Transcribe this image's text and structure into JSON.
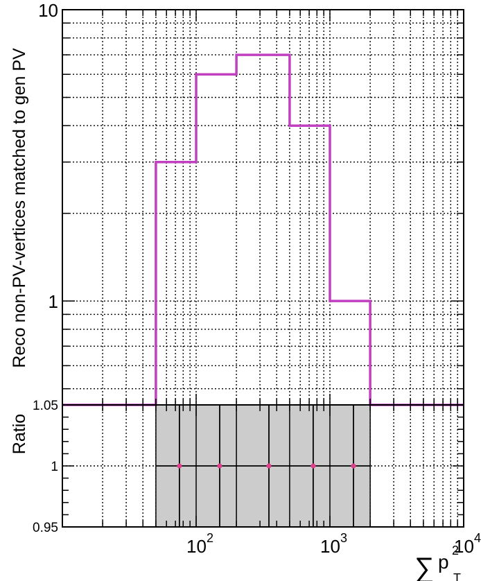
{
  "chart_data": [
    {
      "type": "histogram",
      "ylabel": "Reco non-PV-vertices matched to gen PV",
      "x_scale": "log",
      "y_scale": "log",
      "xlim": [
        10,
        10000
      ],
      "ylim": [
        0.44,
        10
      ],
      "grid": true,
      "x_ticks": [
        {
          "value": 100,
          "base": "10",
          "exp": "2"
        },
        {
          "value": 1000,
          "base": "10",
          "exp": "3"
        },
        {
          "value": 10000,
          "base": "10",
          "exp": "4"
        }
      ],
      "y_ticks": [
        {
          "value": 1,
          "label": "1"
        },
        {
          "value": 10,
          "label": "10"
        }
      ],
      "bin_edges": [
        50,
        100,
        200,
        500,
        1000,
        2000
      ],
      "values": [
        3,
        6,
        7,
        4,
        1
      ],
      "color": "#c040c0"
    },
    {
      "type": "ratio",
      "ylabel": "Ratio",
      "x_scale": "log",
      "xlim": [
        10,
        10000
      ],
      "ylim": [
        0.95,
        1.05
      ],
      "grid": true,
      "y_ticks": [
        {
          "value": 0.95,
          "label": "0.95"
        },
        {
          "value": 1,
          "label": "1"
        },
        {
          "value": 1.05,
          "label": "1.05"
        }
      ],
      "bin_edges": [
        50,
        100,
        200,
        500,
        1000,
        2000
      ],
      "points": [
        {
          "x": 75,
          "y": 1
        },
        {
          "x": 150,
          "y": 1
        },
        {
          "x": 350,
          "y": 1
        },
        {
          "x": 750,
          "y": 1
        },
        {
          "x": 1500,
          "y": 1
        }
      ],
      "band_color": "#cccccc",
      "point_color": "#e0408a"
    }
  ],
  "xlabel": {
    "symbol": "∑",
    "var": "p",
    "sup": "2",
    "sub": "T"
  }
}
